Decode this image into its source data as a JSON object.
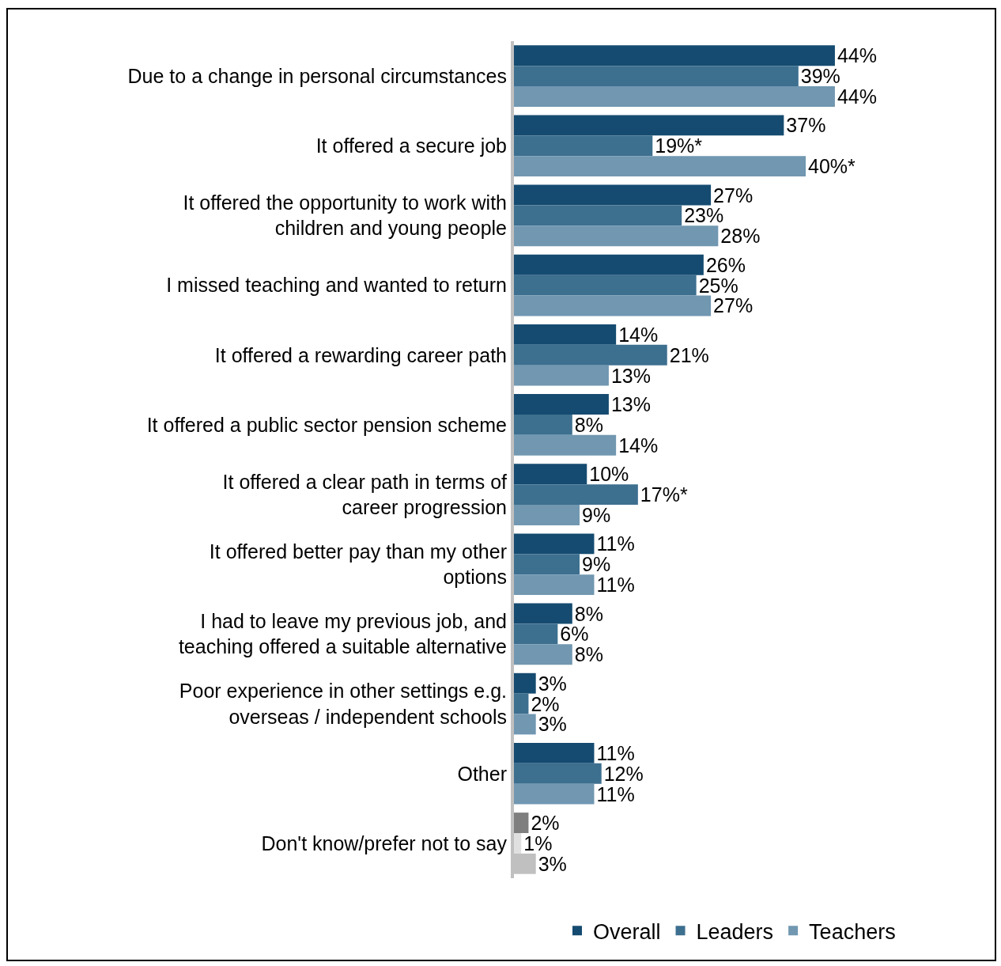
{
  "chart_data": {
    "type": "bar",
    "orientation": "horizontal",
    "categories": [
      "Due to a change in personal circumstances",
      "It offered a secure job",
      "It offered the opportunity to work with children and young people",
      "I missed teaching and wanted to return",
      "It offered a rewarding career path",
      "It offered a public sector pension scheme",
      "It offered a clear path in terms of career progression",
      "It offered better pay than my other options",
      "I had to leave my previous job, and teaching offered a suitable alternative",
      "Poor experience in other settings e.g. overseas / independent schools",
      "Other",
      "Don't know/prefer not to say"
    ],
    "series": [
      {
        "name": "Overall",
        "color": "#154b70",
        "colors": [
          null,
          null,
          null,
          null,
          null,
          null,
          null,
          null,
          null,
          null,
          null,
          "#7f7f7f"
        ],
        "values": [
          44,
          37,
          27,
          26,
          14,
          13,
          10,
          11,
          8,
          3,
          11,
          2
        ],
        "value_labels": [
          "44%",
          "37%",
          "27%",
          "26%",
          "14%",
          "13%",
          "10%",
          "11%",
          "8%",
          "3%",
          "11%",
          "2%"
        ]
      },
      {
        "name": "Leaders",
        "color": "#3d6f8f",
        "colors": [
          null,
          null,
          null,
          null,
          null,
          null,
          null,
          null,
          null,
          null,
          null,
          "#e0e0e0"
        ],
        "values": [
          39,
          19,
          23,
          25,
          21,
          8,
          17,
          9,
          6,
          2,
          12,
          1
        ],
        "value_labels": [
          "39%",
          "19%*",
          "23%",
          "25%",
          "21%",
          "8%",
          "17%*",
          "9%",
          "6%",
          "2%",
          "12%",
          "1%"
        ]
      },
      {
        "name": "Teachers",
        "color": "#7197b1",
        "colors": [
          null,
          null,
          null,
          null,
          null,
          null,
          null,
          null,
          null,
          null,
          null,
          "#c0c0c0"
        ],
        "values": [
          44,
          40,
          28,
          27,
          13,
          14,
          9,
          11,
          8,
          3,
          11,
          3
        ],
        "value_labels": [
          "44%",
          "40%*",
          "28%",
          "27%",
          "13%",
          "14%",
          "9%",
          "11%",
          "8%",
          "3%",
          "11%",
          "3%"
        ]
      }
    ],
    "legend": "bottom",
    "grid": false
  }
}
